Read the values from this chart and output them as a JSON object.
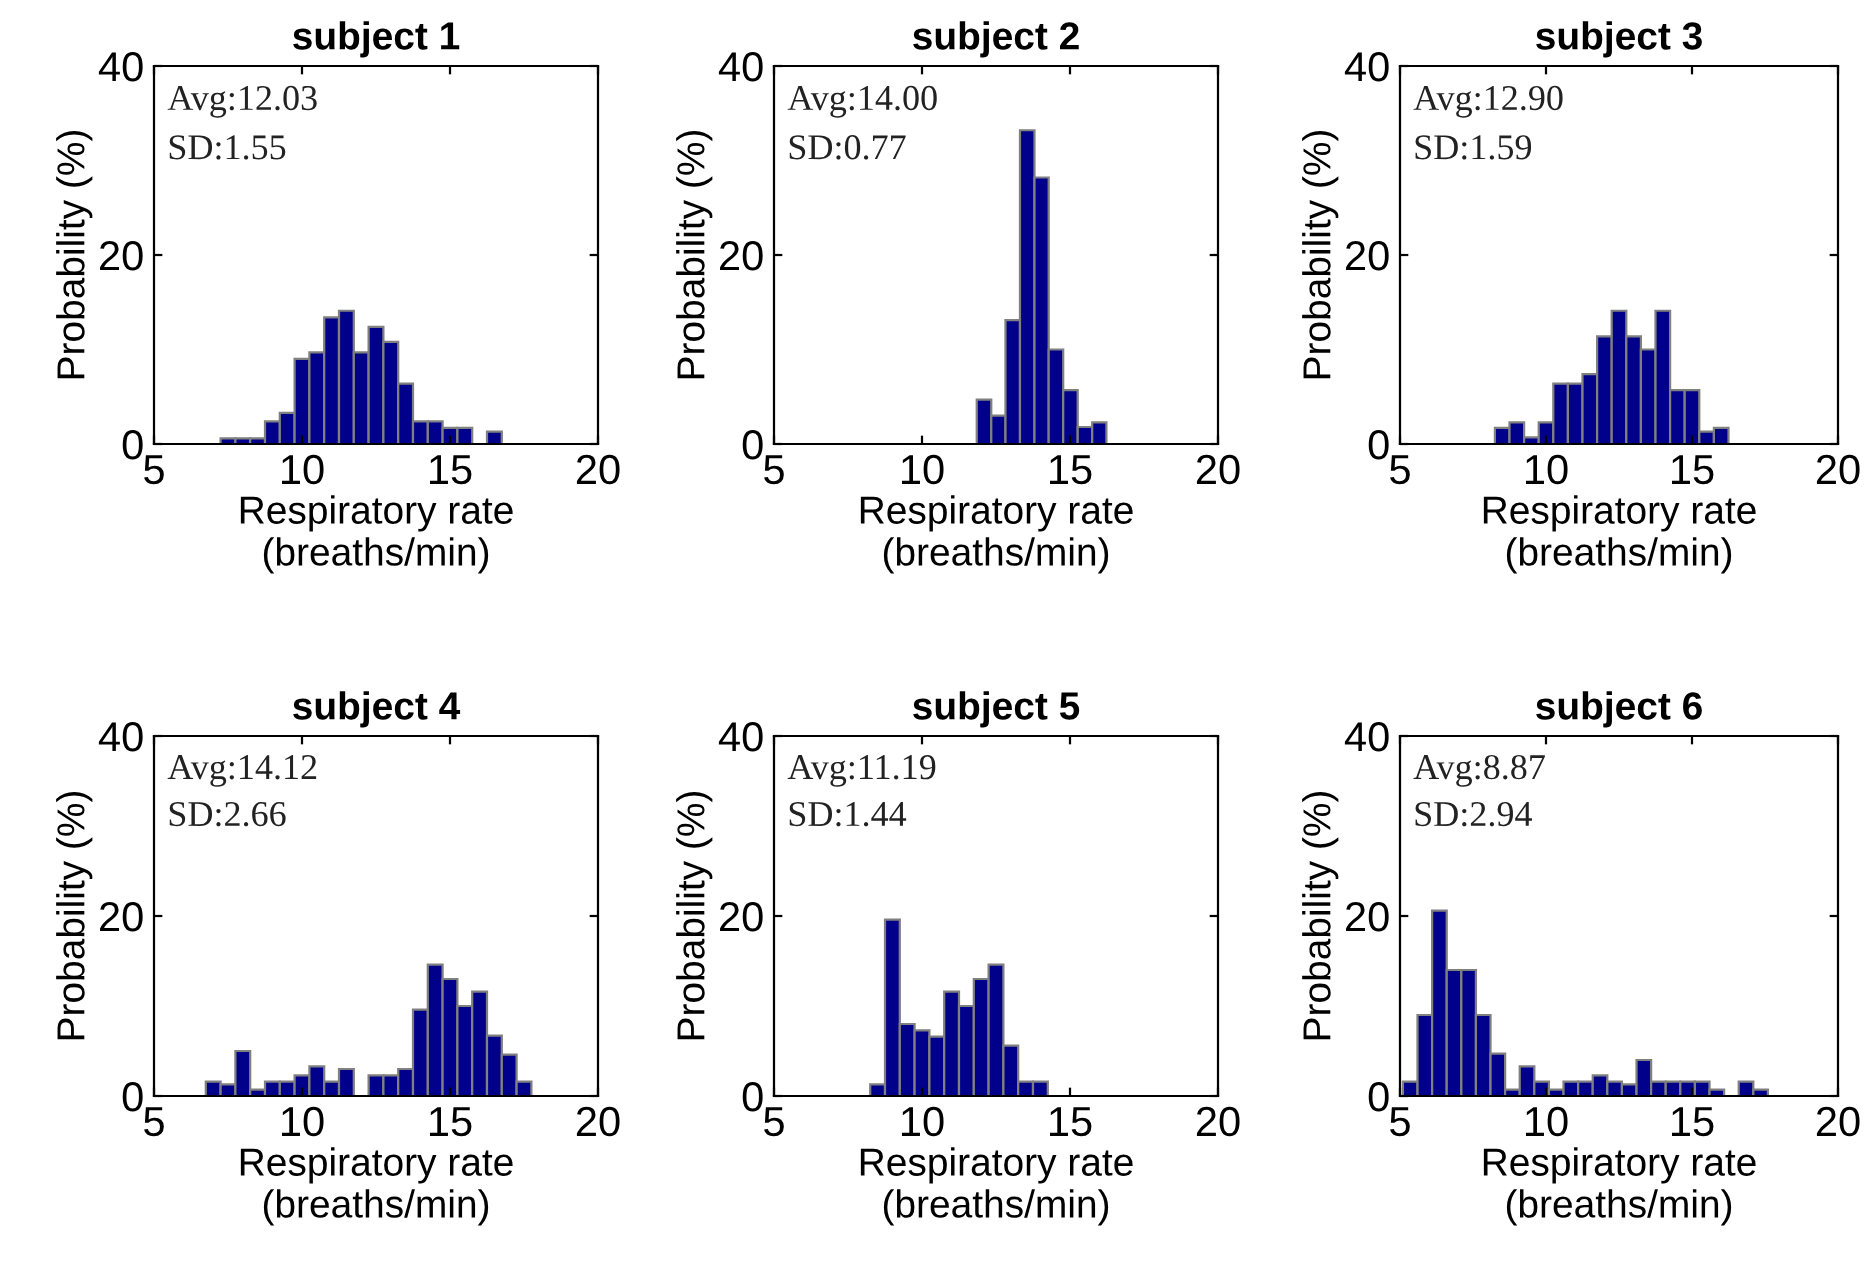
{
  "chart_data": [
    {
      "type": "histogram",
      "title": "subject 1",
      "xlabel": "Respiratory rate\n(breaths/min)",
      "ylabel": "Probability (%)",
      "annotations": [
        "Avg:12.03",
        "SD:1.55"
      ],
      "color": "#00008b",
      "xlim": [
        5,
        20
      ],
      "ylim": [
        0,
        40
      ],
      "xticks": [
        5,
        10,
        15,
        20
      ],
      "yticks": [
        0,
        20,
        40
      ],
      "grid": false,
      "bins": [
        7.25,
        7.75,
        8.25,
        8.75,
        9.25,
        9.75,
        10.25,
        10.75,
        11.25,
        11.75,
        12.25,
        12.75,
        13.25,
        13.75,
        14.25,
        14.75,
        15.25,
        15.75,
        16.25,
        16.75
      ],
      "values": [
        0.6,
        0.6,
        0.6,
        2.4,
        3.3,
        9.0,
        9.7,
        13.4,
        14.1,
        9.7,
        12.4,
        10.8,
        6.4,
        2.4,
        2.4,
        1.7,
        1.7,
        0,
        1.3
      ]
    },
    {
      "type": "histogram",
      "title": "subject 2",
      "xlabel": "Respiratory rate\n(breaths/min)",
      "ylabel": "Probability (%)",
      "annotations": [
        "Avg:14.00",
        "SD:0.77"
      ],
      "color": "#00008b",
      "xlim": [
        5,
        20
      ],
      "ylim": [
        0,
        40
      ],
      "xticks": [
        5,
        10,
        15,
        20
      ],
      "yticks": [
        0,
        20,
        40
      ],
      "grid": false,
      "bins": [
        11.85,
        12.34,
        12.82,
        13.31,
        13.8,
        14.28,
        14.77,
        15.26,
        15.75,
        16.23
      ],
      "values": [
        4.7,
        3.0,
        13.1,
        33.2,
        28.2,
        10.0,
        5.7,
        1.8,
        2.3
      ]
    },
    {
      "type": "histogram",
      "title": "subject 3",
      "xlabel": "Respiratory rate\n(breaths/min)",
      "ylabel": "Probability (%)",
      "annotations": [
        "Avg:12.90",
        "SD:1.59"
      ],
      "color": "#00008b",
      "xlim": [
        5,
        20
      ],
      "ylim": [
        0,
        40
      ],
      "xticks": [
        5,
        10,
        15,
        20
      ],
      "yticks": [
        0,
        20,
        40
      ],
      "grid": false,
      "bins": [
        8.25,
        8.75,
        9.25,
        9.75,
        10.25,
        10.75,
        11.25,
        11.75,
        12.25,
        12.75,
        13.25,
        13.75,
        14.25,
        14.75,
        15.25,
        15.75,
        16.25
      ],
      "values": [
        1.7,
        2.3,
        0.7,
        2.3,
        6.4,
        6.4,
        7.4,
        11.4,
        14.1,
        11.4,
        10.0,
        14.1,
        5.7,
        5.7,
        1.3,
        1.7
      ]
    },
    {
      "type": "histogram",
      "title": "subject 4",
      "xlabel": "Respiratory rate\n(breaths/min)",
      "ylabel": "Probability (%)",
      "annotations": [
        "Avg:14.12",
        "SD:2.66"
      ],
      "color": "#00008b",
      "xlim": [
        5,
        20
      ],
      "ylim": [
        0,
        40
      ],
      "xticks": [
        5,
        10,
        15,
        20
      ],
      "yticks": [
        0,
        20,
        40
      ],
      "grid": false,
      "bins": [
        6.75,
        7.25,
        7.75,
        8.25,
        8.75,
        9.25,
        9.75,
        10.25,
        10.75,
        11.25,
        11.75,
        12.25,
        12.75,
        13.25,
        13.75,
        14.25,
        14.75,
        15.25,
        15.75,
        16.25,
        16.75,
        17.25,
        17.75
      ],
      "values": [
        1.6,
        1.3,
        5.0,
        0.7,
        1.6,
        1.6,
        2.3,
        3.3,
        1.6,
        3.0,
        0,
        2.3,
        2.3,
        3.0,
        9.6,
        14.6,
        13.0,
        10.0,
        11.6,
        6.7,
        4.6,
        1.6
      ]
    },
    {
      "type": "histogram",
      "title": "subject 5",
      "xlabel": "Respiratory rate\n(breaths/min)",
      "ylabel": "Probability (%)",
      "annotations": [
        "Avg:11.19",
        "SD:1.44"
      ],
      "color": "#00008b",
      "xlim": [
        5,
        20
      ],
      "ylim": [
        0,
        40
      ],
      "xticks": [
        5,
        10,
        15,
        20
      ],
      "yticks": [
        0,
        20,
        40
      ],
      "grid": false,
      "bins": [
        8.25,
        8.75,
        9.25,
        9.75,
        10.25,
        10.75,
        11.25,
        11.75,
        12.25,
        12.75,
        13.25,
        13.75,
        14.25
      ],
      "values": [
        1.3,
        19.6,
        8.0,
        7.3,
        6.6,
        11.6,
        10.0,
        13.0,
        14.6,
        5.6,
        1.6,
        1.6
      ]
    },
    {
      "type": "histogram",
      "title": "subject 6",
      "xlabel": "Respiratory rate\n(breaths/min)",
      "ylabel": "Probability (%)",
      "annotations": [
        "Avg:8.87",
        "SD:2.94"
      ],
      "color": "#00008b",
      "xlim": [
        5,
        20
      ],
      "ylim": [
        0,
        40
      ],
      "xticks": [
        5,
        10,
        15,
        20
      ],
      "yticks": [
        0,
        20,
        40
      ],
      "grid": false,
      "bins": [
        5.1,
        5.6,
        6.1,
        6.6,
        7.1,
        7.6,
        8.1,
        8.6,
        9.1,
        9.6,
        10.1,
        10.6,
        11.1,
        11.6,
        12.1,
        12.6,
        13.1,
        13.6,
        14.1,
        14.6,
        15.1,
        15.6,
        16.1,
        16.6,
        17.1,
        17.6
      ],
      "values": [
        1.6,
        9.0,
        20.6,
        14.0,
        14.0,
        9.0,
        4.7,
        0.7,
        3.3,
        1.6,
        0.7,
        1.6,
        1.6,
        2.3,
        1.6,
        1.3,
        4.0,
        1.6,
        1.6,
        1.6,
        1.6,
        0.7,
        0,
        1.6,
        0.7
      ]
    }
  ]
}
